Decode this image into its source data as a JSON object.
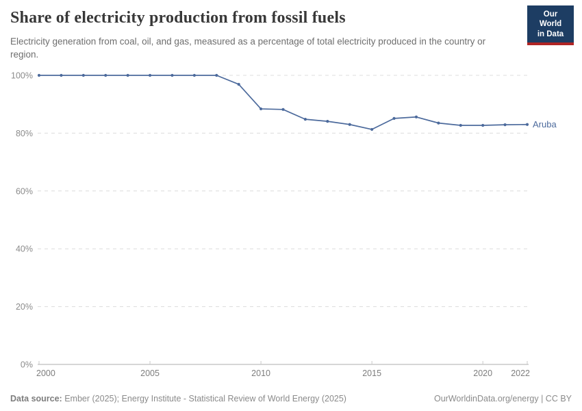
{
  "header": {
    "title": "Share of electricity production from fossil fuels",
    "subtitle": "Electricity generation from coal, oil, and gas, measured as a percentage of total electricity produced in the country or region.",
    "logo": {
      "line1": "Our World",
      "line2": "in Data",
      "bg_color": "#1d3d63",
      "accent_color": "#b02424"
    }
  },
  "chart_data": {
    "type": "line",
    "title": "Share of electricity production from fossil fuels",
    "xlabel": "",
    "ylabel": "",
    "xlim": [
      2000,
      2022
    ],
    "ylim": [
      0,
      100
    ],
    "x_ticks": [
      2000,
      2005,
      2010,
      2015,
      2020,
      2022
    ],
    "y_ticks": [
      0,
      20,
      40,
      60,
      80,
      100
    ],
    "y_tick_format": "{}%",
    "grid": "horizontal-dashed",
    "legend_position": "end-of-line-label",
    "series": [
      {
        "name": "Aruba",
        "color": "#4C6A9C",
        "x": [
          2000,
          2001,
          2002,
          2003,
          2004,
          2005,
          2006,
          2007,
          2008,
          2009,
          2010,
          2011,
          2012,
          2013,
          2014,
          2015,
          2016,
          2017,
          2018,
          2019,
          2020,
          2021,
          2022
        ],
        "values": [
          100,
          100,
          100,
          100,
          100,
          100,
          100,
          100,
          100,
          96.9,
          88.4,
          88.2,
          84.8,
          84.1,
          83.0,
          81.3,
          85.1,
          85.6,
          83.5,
          82.7,
          82.7,
          82.9,
          83.0
        ]
      }
    ]
  },
  "footer": {
    "datasource_label": "Data source:",
    "datasource_text": " Ember (2025); Energy Institute - Statistical Review of World Energy (2025)",
    "credit": "OurWorldinData.org/energy | CC BY"
  }
}
